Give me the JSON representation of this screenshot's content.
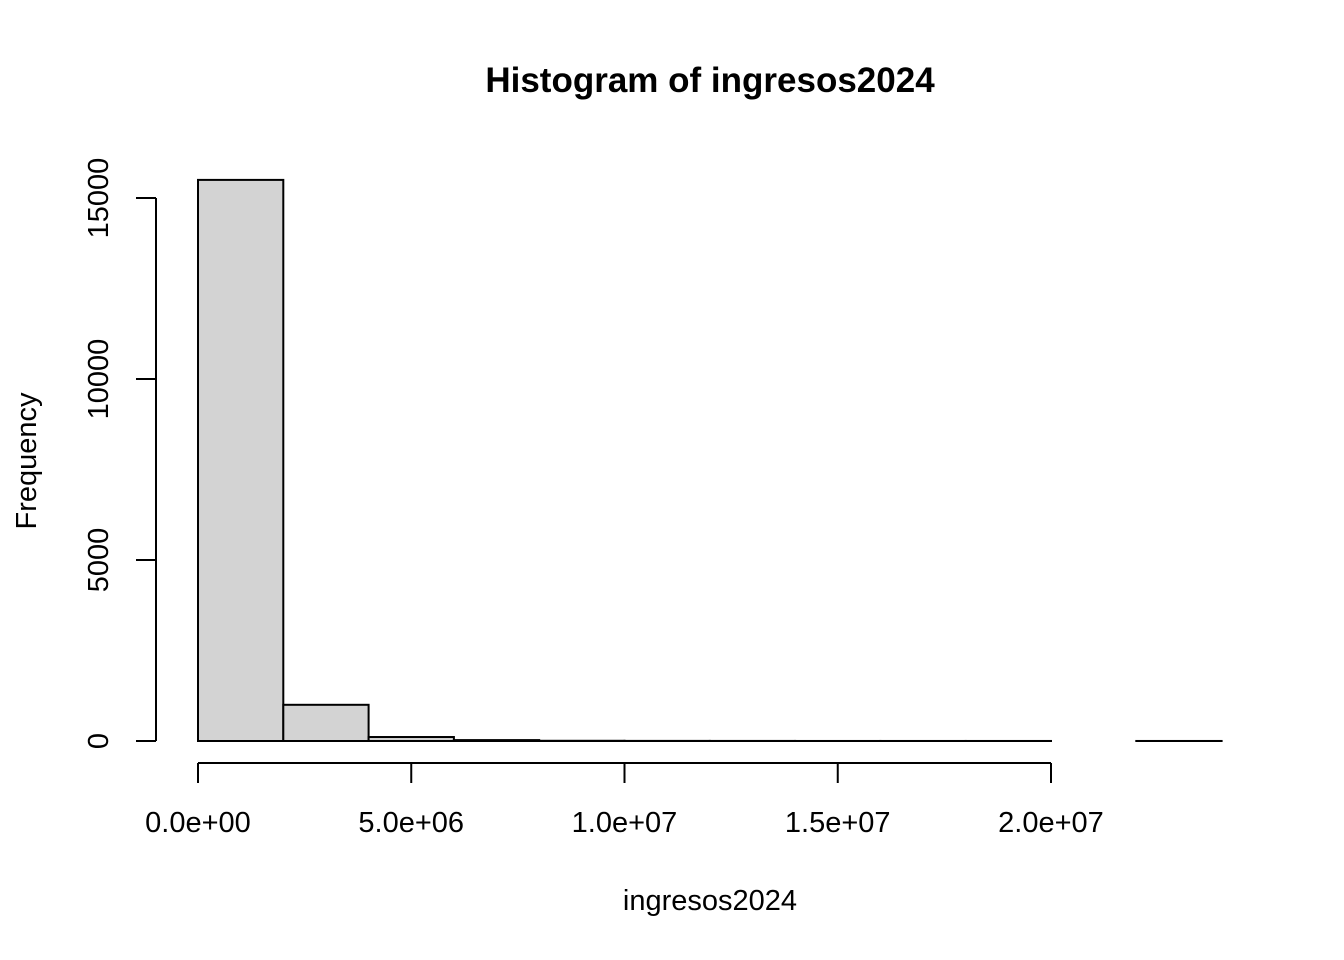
{
  "chart_data": {
    "type": "bar",
    "subtype": "histogram",
    "title": "Histogram of ingresos2024",
    "xlabel": "ingresos2024",
    "ylabel": "Frequency",
    "bar_color": "#d3d3d3",
    "border_color": "#000000",
    "bin_width": 2000000,
    "bins": [
      {
        "x0": 0,
        "x1": 2000000,
        "count": 15500
      },
      {
        "x0": 2000000,
        "x1": 4000000,
        "count": 1000
      },
      {
        "x0": 4000000,
        "x1": 6000000,
        "count": 110
      },
      {
        "x0": 6000000,
        "x1": 8000000,
        "count": 25
      },
      {
        "x0": 8000000,
        "x1": 10000000,
        "count": 6
      },
      {
        "x0": 10000000,
        "x1": 12000000,
        "count": 3
      },
      {
        "x0": 12000000,
        "x1": 14000000,
        "count": 2
      },
      {
        "x0": 14000000,
        "x1": 16000000,
        "count": 1
      },
      {
        "x0": 16000000,
        "x1": 18000000,
        "count": 1
      },
      {
        "x0": 18000000,
        "x1": 20000000,
        "count": 1
      },
      {
        "x0": 20000000,
        "x1": 22000000,
        "count": 0
      },
      {
        "x0": 22000000,
        "x1": 24000000,
        "count": 1
      }
    ],
    "x_ticks": [
      0,
      5000000,
      10000000,
      15000000,
      20000000
    ],
    "x_tick_labels": [
      "0.0e+00",
      "5.0e+06",
      "1.0e+07",
      "1.5e+07",
      "2.0e+07"
    ],
    "y_ticks": [
      0,
      5000,
      10000,
      15000
    ],
    "y_tick_labels": [
      "0",
      "5000",
      "10000",
      "15000"
    ],
    "xlim": [
      0,
      24000000
    ],
    "ylim": [
      0,
      15500
    ],
    "grid": false,
    "legend": "none"
  }
}
